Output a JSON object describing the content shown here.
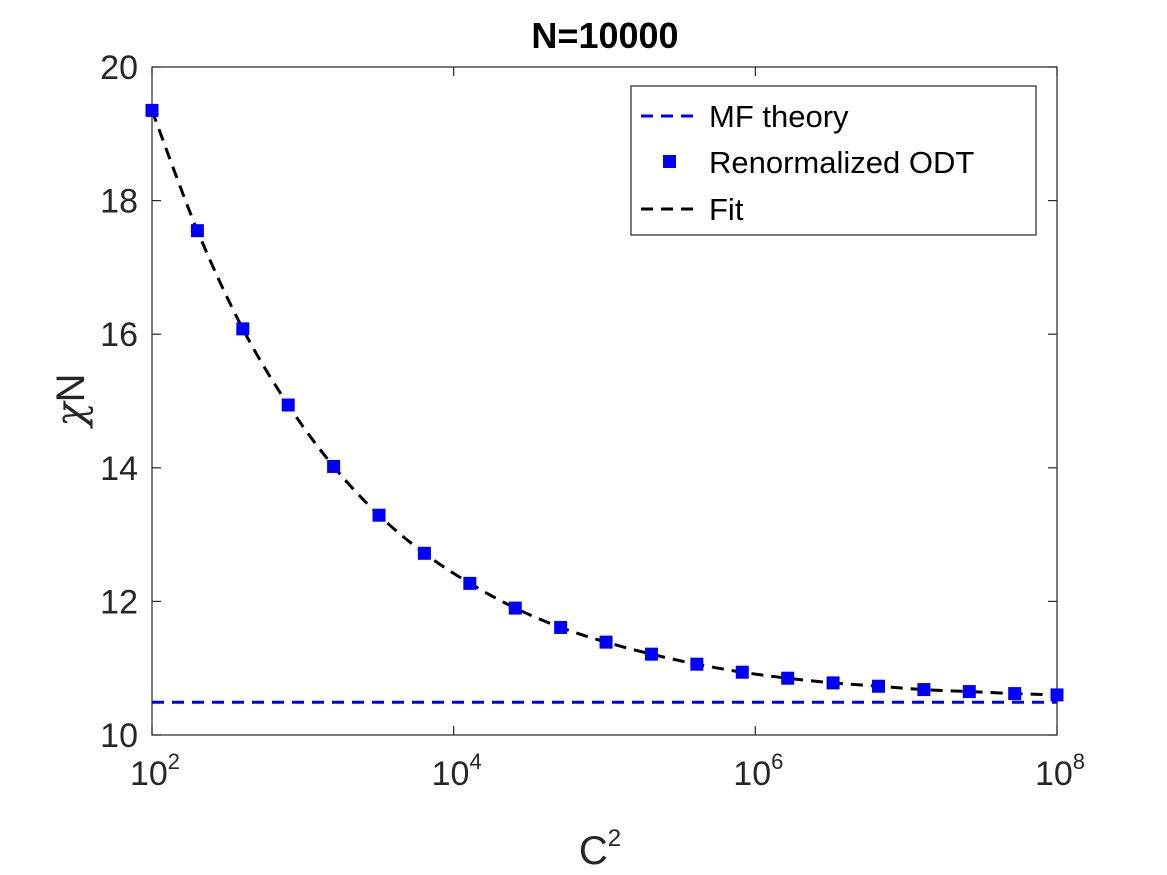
{
  "chart_data": {
    "type": "line",
    "title": "N=10000",
    "xlabel": {
      "base": "C",
      "sup": "2"
    },
    "ylabel": {
      "greek": "χ",
      "rest": "N"
    },
    "xscale": "log",
    "xlim": [
      100,
      100000000
    ],
    "ylim": [
      10,
      20
    ],
    "x_ticks": [
      {
        "base": "10",
        "exp": "2",
        "value": 100
      },
      {
        "base": "10",
        "exp": "4",
        "value": 10000
      },
      {
        "base": "10",
        "exp": "6",
        "value": 1000000
      },
      {
        "base": "10",
        "exp": "8",
        "value": 100000000
      }
    ],
    "y_ticks": [
      {
        "label": "10",
        "value": 10
      },
      {
        "label": "12",
        "value": 12
      },
      {
        "label": "14",
        "value": 14
      },
      {
        "label": "16",
        "value": 16
      },
      {
        "label": "18",
        "value": 18
      },
      {
        "label": "20",
        "value": 20
      }
    ],
    "grid": false,
    "legend_position": "top-right",
    "series": [
      {
        "name": "MF theory",
        "style": "dashed-line",
        "color": "#0000ff",
        "x": [
          100,
          100000000
        ],
        "y": [
          10.49,
          10.49
        ]
      },
      {
        "name": "Renormalized ODT",
        "style": "square-markers",
        "color": "#0000ff",
        "x": [
          100,
          200,
          400,
          800,
          1600,
          3200,
          6400,
          12800,
          25600,
          51200,
          102400,
          204800,
          409600,
          819200,
          1638400,
          3276800,
          6553600,
          13107200,
          26214400,
          52428800,
          100000000
        ],
        "y": [
          19.35,
          17.55,
          16.08,
          14.94,
          14.02,
          13.29,
          12.72,
          12.27,
          11.9,
          11.61,
          11.39,
          11.21,
          11.06,
          10.94,
          10.85,
          10.78,
          10.73,
          10.68,
          10.65,
          10.62,
          10.6
        ]
      },
      {
        "name": "Fit",
        "style": "dashed-line",
        "color": "#000000",
        "x": [
          100,
          200,
          400,
          800,
          1600,
          3200,
          6400,
          12800,
          25600,
          51200,
          102400,
          204800,
          409600,
          819200,
          1638400,
          3276800,
          6553600,
          13107200,
          26214400,
          52428800,
          100000000
        ],
        "y": [
          19.35,
          17.55,
          16.08,
          14.94,
          14.02,
          13.29,
          12.72,
          12.27,
          11.9,
          11.61,
          11.39,
          11.21,
          11.06,
          10.94,
          10.85,
          10.78,
          10.73,
          10.68,
          10.65,
          10.62,
          10.6
        ]
      }
    ]
  }
}
